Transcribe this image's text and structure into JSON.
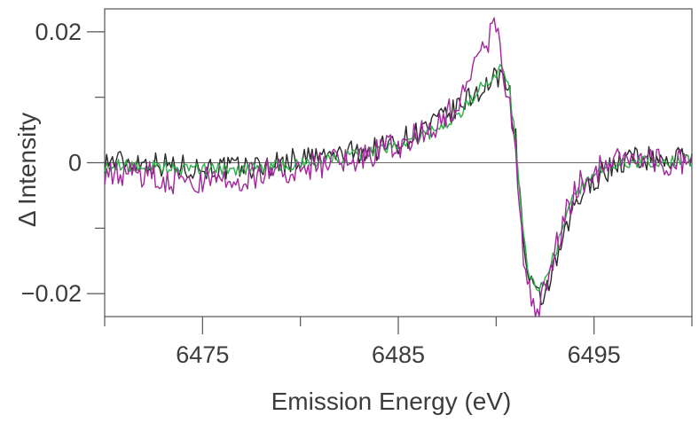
{
  "chart_data": {
    "type": "line",
    "title": "",
    "xlabel": "Emission Energy (eV)",
    "ylabel": "Δ Intensity",
    "xlim": [
      6470,
      6500
    ],
    "ylim": [
      -0.0235,
      0.0235
    ],
    "x_ticks_major": [
      6475,
      6485,
      6495
    ],
    "x_ticks_minor": [
      6470,
      6480,
      6490,
      6500
    ],
    "x_tick_labels": [
      "6475",
      "6485",
      "6495"
    ],
    "y_ticks": [
      -0.02,
      0,
      0.02
    ],
    "y_tick_labels": [
      "−0.02",
      "0",
      "0.02"
    ],
    "y_minor_ticks": [
      -0.01,
      0.01
    ],
    "zero_line": true,
    "grid": false,
    "legend": false,
    "colors": [
      "#2a2a2a",
      "#2fae4a",
      "#a0289a"
    ],
    "series": [
      {
        "color": "#2a2a2a",
        "x": [
          6470,
          6472,
          6474,
          6476,
          6478,
          6480,
          6482,
          6484,
          6485,
          6486,
          6487,
          6488,
          6488.5,
          6489,
          6489.5,
          6490,
          6490.3,
          6490.6,
          6491,
          6491.3,
          6491.6,
          6492,
          6492.3,
          6492.6,
          6493,
          6493.5,
          6494,
          6495,
          6496,
          6497,
          6498,
          6499,
          6500
        ],
        "y": [
          0.0003,
          0.0001,
          -0.0006,
          -0.0009,
          -0.0006,
          0.0006,
          0.0012,
          0.0022,
          0.0032,
          0.0047,
          0.0062,
          0.0082,
          0.0095,
          0.0108,
          0.0117,
          0.0128,
          0.0135,
          0.0125,
          0.0035,
          -0.0085,
          -0.0175,
          -0.0205,
          -0.021,
          -0.019,
          -0.016,
          -0.0115,
          -0.0065,
          -0.0025,
          -0.0004,
          0.0008,
          0.0006,
          0.0004,
          0.0012
        ]
      },
      {
        "color": "#2fae4a",
        "x": [
          6470,
          6472,
          6474,
          6476,
          6478,
          6480,
          6482,
          6484,
          6485,
          6486,
          6487,
          6488,
          6488.5,
          6489,
          6489.5,
          6490,
          6490.3,
          6490.6,
          6491,
          6491.3,
          6491.6,
          6492,
          6492.3,
          6492.6,
          6493,
          6493.5,
          6494,
          6495,
          6496,
          6497,
          6498,
          6499,
          6500
        ],
        "y": [
          -0.0004,
          -0.0005,
          -0.001,
          -0.001,
          -0.0008,
          -0.0002,
          0.0008,
          0.0018,
          0.0026,
          0.0036,
          0.0052,
          0.0072,
          0.0088,
          0.0108,
          0.0122,
          0.0138,
          0.0148,
          0.0128,
          0.003,
          -0.0085,
          -0.0165,
          -0.019,
          -0.0185,
          -0.017,
          -0.014,
          -0.0095,
          -0.005,
          -0.0015,
          -0.0002,
          0.0002,
          0.0001,
          0.0001,
          0.0002
        ]
      },
      {
        "color": "#a0289a",
        "x": [
          6470,
          6472,
          6474,
          6476,
          6478,
          6480,
          6482,
          6484,
          6485,
          6486,
          6487,
          6488,
          6488.5,
          6489,
          6489.5,
          6490,
          6490.3,
          6490.6,
          6491,
          6491.3,
          6491.6,
          6492,
          6492.3,
          6492.6,
          6493,
          6493.5,
          6494,
          6495,
          6496,
          6497,
          6498,
          6499,
          6500
        ],
        "y": [
          -0.0012,
          -0.0018,
          -0.0028,
          -0.0026,
          -0.0016,
          -0.0006,
          0.0001,
          0.0015,
          0.0027,
          0.0042,
          0.0062,
          0.0088,
          0.0112,
          0.0148,
          0.0185,
          0.0205,
          0.0155,
          0.0105,
          0.0012,
          -0.0105,
          -0.0195,
          -0.0225,
          -0.0215,
          -0.0175,
          -0.0135,
          -0.0085,
          -0.0042,
          -0.0012,
          -0.0002,
          0.0009,
          0.0003,
          -0.0004,
          0.0007
        ]
      }
    ]
  }
}
